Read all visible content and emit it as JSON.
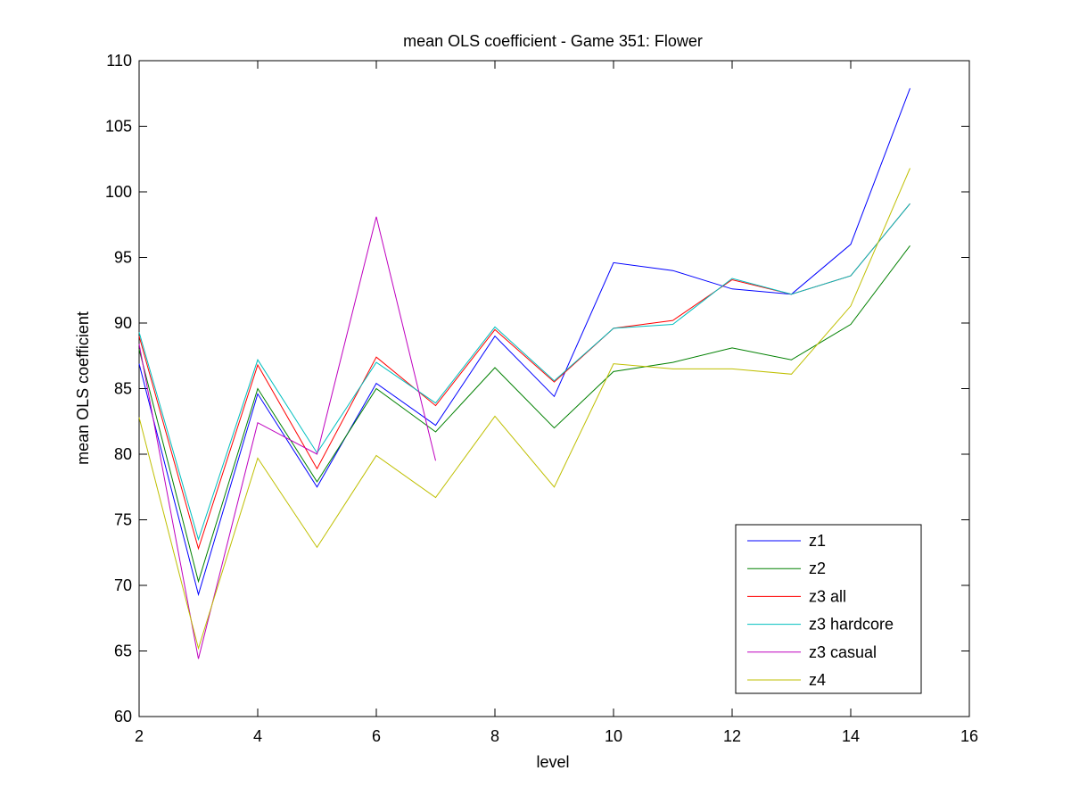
{
  "chart_data": {
    "type": "line",
    "title": "mean OLS coefficient - Game 351: Flower",
    "xlabel": "level",
    "ylabel": "mean OLS coefficient",
    "xlim": [
      2,
      16
    ],
    "ylim": [
      60,
      110
    ],
    "xticks": [
      2,
      4,
      6,
      8,
      10,
      12,
      14,
      16
    ],
    "yticks": [
      60,
      65,
      70,
      75,
      80,
      85,
      90,
      95,
      100,
      105,
      110
    ],
    "grid": false,
    "legend_position": "bottom-right",
    "series": [
      {
        "name": "z1",
        "color": "#0000ff",
        "x": [
          2,
          3,
          4,
          5,
          6,
          7,
          8,
          9,
          10,
          11,
          12,
          13,
          14,
          15
        ],
        "values": [
          86.9,
          69.3,
          84.6,
          77.5,
          85.4,
          82.2,
          89.0,
          84.4,
          94.6,
          94.0,
          92.6,
          92.2,
          96.0,
          107.9
        ]
      },
      {
        "name": "z2",
        "color": "#008000",
        "x": [
          2,
          3,
          4,
          5,
          6,
          7,
          8,
          9,
          10,
          11,
          12,
          13,
          14,
          15
        ],
        "values": [
          88.0,
          70.3,
          85.0,
          77.9,
          85.0,
          81.7,
          86.6,
          82.0,
          86.3,
          87.0,
          88.1,
          87.2,
          89.9,
          95.9
        ]
      },
      {
        "name": "z3 all",
        "color": "#ff0000",
        "x": [
          2,
          3,
          4,
          5,
          6,
          7,
          8,
          9,
          10,
          11,
          12,
          13,
          14,
          15
        ],
        "values": [
          89.0,
          72.8,
          86.8,
          78.9,
          87.4,
          83.7,
          89.5,
          85.5,
          89.6,
          90.2,
          93.3,
          92.2,
          93.6,
          99.1
        ]
      },
      {
        "name": "z3 hardcore",
        "color": "#00bfbf",
        "x": [
          2,
          3,
          4,
          5,
          6,
          7,
          8,
          9,
          10,
          11,
          12,
          13,
          14,
          15
        ],
        "values": [
          89.3,
          73.5,
          87.2,
          80.1,
          87.0,
          83.9,
          89.7,
          85.6,
          89.6,
          89.9,
          93.4,
          92.2,
          93.6,
          99.1
        ]
      },
      {
        "name": "z3 casual",
        "color": "#bf00bf",
        "x": [
          2,
          3,
          4,
          5,
          6,
          7
        ],
        "values": [
          88.4,
          64.4,
          82.4,
          80.0,
          98.1,
          79.5
        ]
      },
      {
        "name": "z4",
        "color": "#bfbf00",
        "x": [
          2,
          3,
          4,
          5,
          6,
          7,
          8,
          9,
          10,
          11,
          12,
          13,
          14,
          15
        ],
        "values": [
          82.8,
          65.2,
          79.7,
          72.9,
          79.9,
          76.7,
          82.9,
          77.5,
          86.9,
          86.5,
          86.5,
          86.1,
          91.3,
          101.8
        ]
      }
    ]
  }
}
